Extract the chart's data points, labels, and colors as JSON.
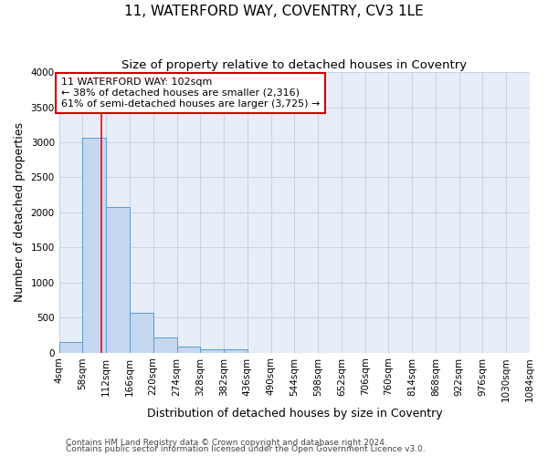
{
  "title": "11, WATERFORD WAY, COVENTRY, CV3 1LE",
  "subtitle": "Size of property relative to detached houses in Coventry",
  "xlabel": "Distribution of detached houses by size in Coventry",
  "ylabel": "Number of detached properties",
  "footnote1": "Contains HM Land Registry data © Crown copyright and database right 2024.",
  "footnote2": "Contains public sector information licensed under the Open Government Licence v3.0.",
  "bin_edges": [
    4,
    58,
    112,
    166,
    220,
    274,
    328,
    382,
    436,
    490,
    544,
    598,
    652,
    706,
    760,
    814,
    868,
    922,
    976,
    1030,
    1084
  ],
  "bar_heights": [
    150,
    3070,
    2070,
    570,
    210,
    80,
    50,
    50,
    0,
    0,
    0,
    0,
    0,
    0,
    0,
    0,
    0,
    0,
    0,
    0
  ],
  "bar_color": "#c5d8f0",
  "bar_edge_color": "#5b9bd5",
  "grid_color": "#c8d4e8",
  "background_color": "#ffffff",
  "plot_bg_color": "#e8eef8",
  "red_line_x": 102,
  "ylim": [
    0,
    4000
  ],
  "yticks": [
    0,
    500,
    1000,
    1500,
    2000,
    2500,
    3000,
    3500,
    4000
  ],
  "xtick_labels": [
    "4sqm",
    "58sqm",
    "112sqm",
    "166sqm",
    "220sqm",
    "274sqm",
    "328sqm",
    "382sqm",
    "436sqm",
    "490sqm",
    "544sqm",
    "598sqm",
    "652sqm",
    "706sqm",
    "760sqm",
    "814sqm",
    "868sqm",
    "922sqm",
    "976sqm",
    "1030sqm",
    "1084sqm"
  ],
  "annotation_text": "11 WATERFORD WAY: 102sqm\n← 38% of detached houses are smaller (2,316)\n61% of semi-detached houses are larger (3,725) →",
  "annotation_box_color": "#ffffff",
  "annotation_box_edge_color": "#cc0000",
  "title_fontsize": 11,
  "subtitle_fontsize": 9.5,
  "axis_label_fontsize": 9,
  "tick_fontsize": 7.5,
  "annotation_fontsize": 8,
  "footnote_fontsize": 6.5
}
